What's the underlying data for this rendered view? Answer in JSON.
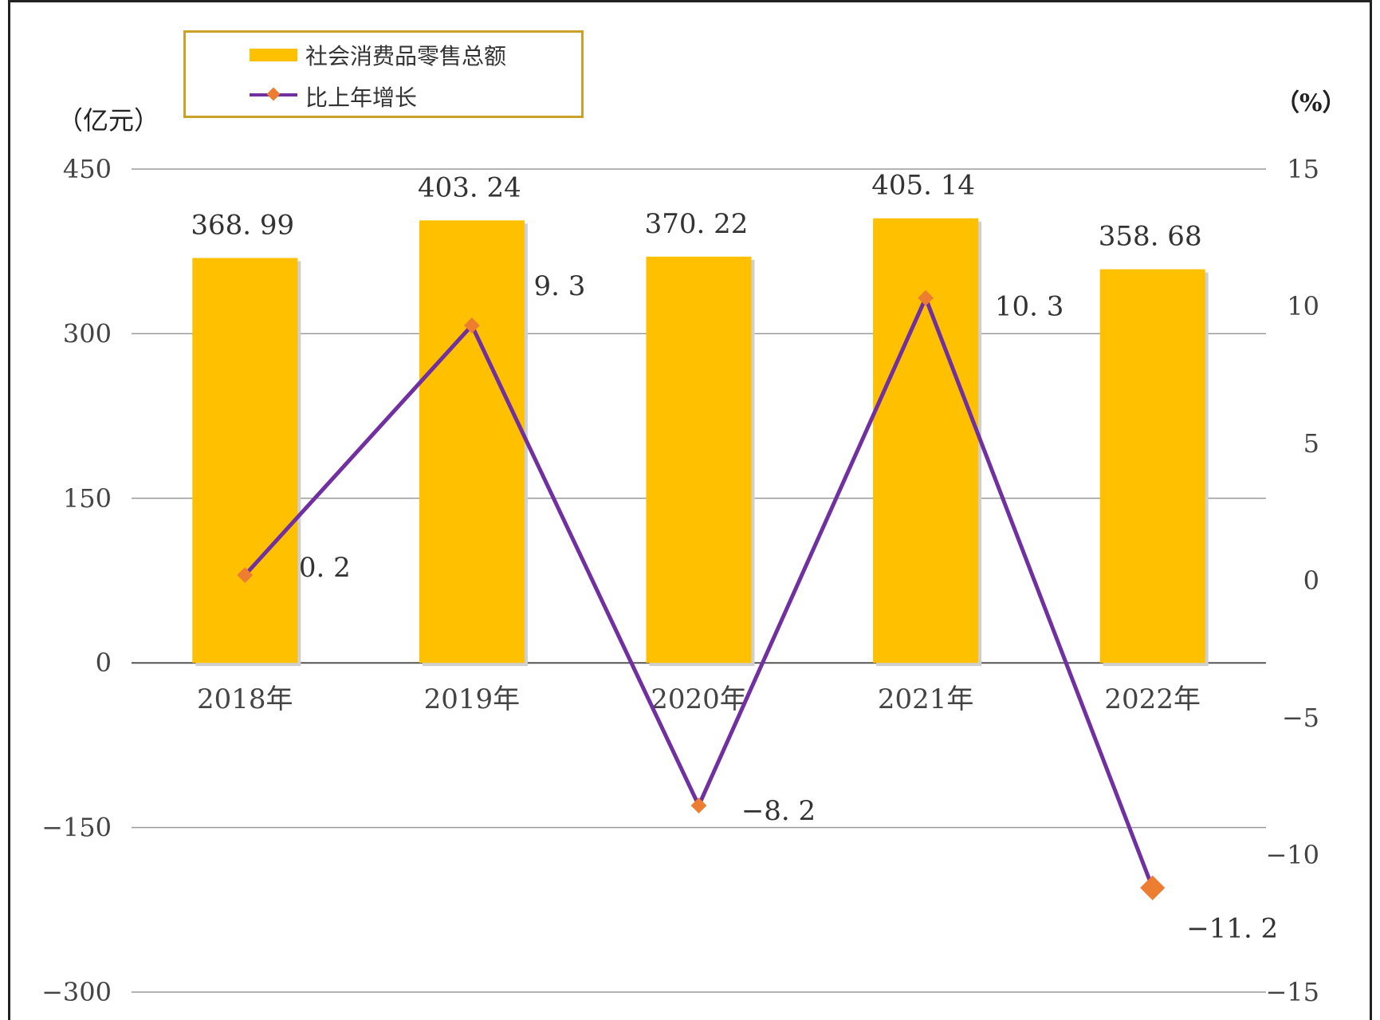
{
  "chart_data": {
    "type": "bar",
    "categories": [
      "2018年",
      "2019年",
      "2020年",
      "2021年",
      "2022年"
    ],
    "series": [
      {
        "name": "社会消费品零售总额",
        "type": "bar",
        "axis": "left",
        "values": [
          368.99,
          403.24,
          370.22,
          405.14,
          358.68
        ],
        "labels": [
          "368. 99",
          "403. 24",
          "370. 22",
          "405. 14",
          "358. 68"
        ],
        "color": "#FFC000"
      },
      {
        "name": "比上年增长",
        "type": "line",
        "axis": "right",
        "values": [
          0.2,
          9.3,
          -8.2,
          10.3,
          -11.2
        ],
        "labels": [
          "0. 2",
          "9. 3",
          "−8. 2",
          "10. 3",
          "−11. 2"
        ],
        "color": "#7030A0",
        "marker_color": "#ED7D31"
      }
    ],
    "left_axis": {
      "unit": "（亿元）",
      "ticks": [
        450,
        300,
        150,
        0,
        -150,
        -300
      ],
      "tick_labels": [
        "450",
        "300",
        "150",
        "0",
        "−150",
        "−300"
      ],
      "ylim": [
        -300,
        450
      ]
    },
    "right_axis": {
      "unit": "（%）",
      "ticks": [
        15,
        10,
        5,
        0,
        -5,
        -10,
        -15
      ],
      "tick_labels": [
        "15",
        "10",
        "5",
        "0",
        "−5",
        "−10",
        "−15"
      ],
      "ylim": [
        -15,
        15
      ]
    },
    "grid": true,
    "legend_position": "top-left"
  }
}
